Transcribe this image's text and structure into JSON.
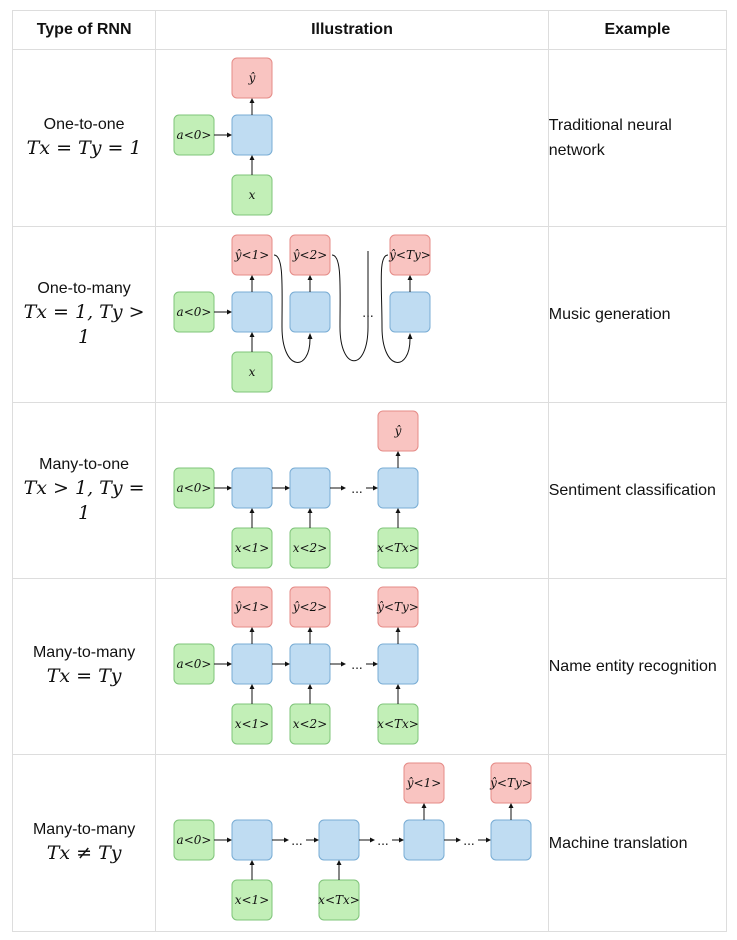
{
  "header": {
    "type_label": "Type of RNN",
    "illustration_label": "Illustration",
    "example_label": "Example"
  },
  "rows": [
    {
      "name": "One-to-one",
      "formula": "Tx = Ty = 1",
      "example": "Traditional neural network",
      "labels": {
        "a0": "a<0>",
        "x": "x",
        "y": "ŷ"
      }
    },
    {
      "name": "One-to-many",
      "formula": "Tx = 1, Ty > 1",
      "example": "Music generation",
      "labels": {
        "a0": "a<0>",
        "x": "x",
        "y1": "ŷ<1>",
        "y2": "ŷ<2>",
        "yT": "ŷ<Ty>",
        "dots": "..."
      }
    },
    {
      "name": "Many-to-one",
      "formula": "Tx > 1, Ty = 1",
      "example": "Sentiment classification",
      "labels": {
        "a0": "a<0>",
        "x1": "x<1>",
        "x2": "x<2>",
        "xT": "x<Tx>",
        "y": "ŷ",
        "dots": "..."
      }
    },
    {
      "name": "Many-to-many",
      "formula": "Tx = Ty",
      "example": "Name entity recognition",
      "labels": {
        "a0": "a<0>",
        "x1": "x<1>",
        "x2": "x<2>",
        "xT": "x<Tx>",
        "y1": "ŷ<1>",
        "y2": "ŷ<2>",
        "yT": "ŷ<Ty>",
        "dots": "..."
      }
    },
    {
      "name": "Many-to-many",
      "formula": "Tx ≠ Ty",
      "example": "Machine translation",
      "labels": {
        "a0": "a<0>",
        "x1": "x<1>",
        "xT": "x<Tx>",
        "y1": "ŷ<1>",
        "yT": "ŷ<Ty>",
        "dots": "..."
      }
    }
  ],
  "colors": {
    "input_fill": "#c2efb7",
    "hidden_fill": "#bfdcf2",
    "output_fill": "#f9c4c1",
    "grid_line": "#dddddd"
  }
}
